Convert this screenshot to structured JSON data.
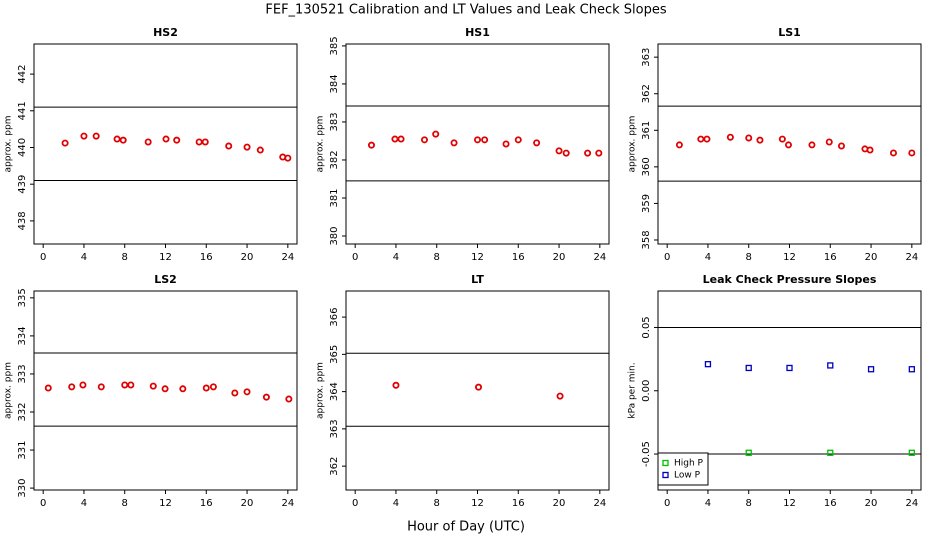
{
  "title": "FEF_130521  Calibration and LT Values and Leak Check Slopes",
  "x_label": "Hour of Day (UTC)",
  "chart_data": [
    {
      "type": "scatter",
      "title": "HS2",
      "y_label": "approx. ppm",
      "color": "#e00000",
      "marker": "circle",
      "x": [
        2.15,
        4.0,
        5.2,
        7.25,
        7.85,
        10.3,
        12.05,
        13.1,
        15.3,
        15.9,
        18.2,
        20.0,
        21.3,
        23.5,
        24.0
      ],
      "values": [
        440.12,
        440.31,
        440.31,
        440.23,
        440.2,
        440.15,
        440.23,
        440.2,
        440.15,
        440.15,
        440.04,
        440.01,
        439.93,
        439.74,
        439.71
      ],
      "hlines": [
        441.1,
        439.1
      ],
      "xlim": [
        -0.9,
        24.9
      ],
      "xticks": [
        0,
        4,
        8,
        12,
        16,
        20,
        24
      ],
      "ylim": [
        437.37,
        442.82
      ],
      "yticks": [
        438,
        439,
        440,
        441,
        442
      ]
    },
    {
      "type": "scatter",
      "title": "HS1",
      "y_label": "approx. ppm",
      "color": "#e00000",
      "marker": "circle",
      "x": [
        1.6,
        3.9,
        4.5,
        6.8,
        7.9,
        9.7,
        12.0,
        12.7,
        14.8,
        16.0,
        17.8,
        20.0,
        20.7,
        22.8,
        23.9
      ],
      "values": [
        382.39,
        382.55,
        382.55,
        382.53,
        382.68,
        382.45,
        382.53,
        382.53,
        382.42,
        382.53,
        382.45,
        382.24,
        382.18,
        382.18,
        382.18
      ],
      "hlines": [
        383.42,
        381.45
      ],
      "xlim": [
        -0.9,
        24.9
      ],
      "xticks": [
        0,
        4,
        8,
        12,
        16,
        20,
        24
      ],
      "ylim": [
        379.79,
        385.05
      ],
      "yticks": [
        380,
        381,
        382,
        383,
        384,
        385
      ]
    },
    {
      "type": "scatter",
      "title": "LS1",
      "y_label": "approx. ppm",
      "color": "#e00000",
      "marker": "circle",
      "x": [
        1.2,
        3.3,
        3.9,
        6.2,
        8.0,
        9.1,
        11.3,
        11.9,
        14.2,
        15.9,
        17.1,
        19.4,
        19.9,
        22.2,
        24.0
      ],
      "values": [
        360.6,
        360.76,
        360.76,
        360.81,
        360.79,
        360.73,
        360.76,
        360.6,
        360.6,
        360.68,
        360.57,
        360.49,
        360.46,
        360.38,
        360.38
      ],
      "hlines": [
        361.66,
        359.61
      ],
      "xlim": [
        -0.9,
        24.9
      ],
      "xticks": [
        0,
        4,
        8,
        12,
        16,
        20,
        24
      ],
      "ylim": [
        357.89,
        363.36
      ],
      "yticks": [
        358,
        359,
        360,
        361,
        362,
        363
      ]
    },
    {
      "type": "scatter",
      "title": "LS2",
      "y_label": "approx. ppm",
      "color": "#e00000",
      "marker": "circle",
      "x": [
        0.5,
        2.8,
        3.9,
        5.7,
        8.0,
        8.6,
        10.8,
        11.96,
        13.7,
        16.0,
        16.7,
        18.8,
        20.0,
        21.9,
        24.1
      ],
      "values": [
        332.63,
        332.66,
        332.71,
        332.66,
        332.71,
        332.71,
        332.68,
        332.61,
        332.61,
        332.63,
        332.66,
        332.5,
        332.53,
        332.39,
        332.34
      ],
      "hlines": [
        333.55,
        331.63
      ],
      "xlim": [
        -0.9,
        24.9
      ],
      "xticks": [
        0,
        4,
        8,
        12,
        16,
        20,
        24
      ],
      "ylim": [
        329.95,
        335.18
      ],
      "yticks": [
        330,
        331,
        332,
        333,
        334,
        335
      ]
    },
    {
      "type": "scatter",
      "title": "LT",
      "y_label": "approx. ppm",
      "color": "#e00000",
      "marker": "circle",
      "x": [
        4.0,
        12.1,
        20.1
      ],
      "values": [
        364.17,
        364.12,
        363.88
      ],
      "hlines": [
        365.03,
        363.07
      ],
      "xlim": [
        -0.9,
        24.9
      ],
      "xticks": [
        0,
        4,
        8,
        12,
        16,
        20,
        24
      ],
      "ylim": [
        361.36,
        366.7
      ],
      "yticks": [
        362,
        363,
        364,
        365,
        366
      ]
    },
    {
      "type": "scatter",
      "title": "Leak Check Pressure Slopes",
      "y_label": "kPa per min.",
      "marker": "square",
      "legend": "bottom-left",
      "series": [
        {
          "name": "High P",
          "color": "#00c000",
          "x": [
            8,
            16,
            24
          ],
          "values": [
            -0.049,
            -0.049,
            -0.049
          ]
        },
        {
          "name": "Low P",
          "color": "#0000c0",
          "x": [
            4,
            8,
            12,
            16,
            20,
            24
          ],
          "values": [
            0.021,
            0.018,
            0.018,
            0.02,
            0.017,
            0.017
          ]
        }
      ],
      "hlines": [
        0.05,
        -0.05
      ],
      "xlim": [
        -0.9,
        24.9
      ],
      "xticks": [
        0,
        4,
        8,
        12,
        16,
        20,
        24
      ],
      "ylim": [
        -0.0784,
        0.0788
      ],
      "yticks": [
        -0.05,
        {
          "value": 0,
          "label": "0.00"
        },
        0.05
      ]
    }
  ]
}
